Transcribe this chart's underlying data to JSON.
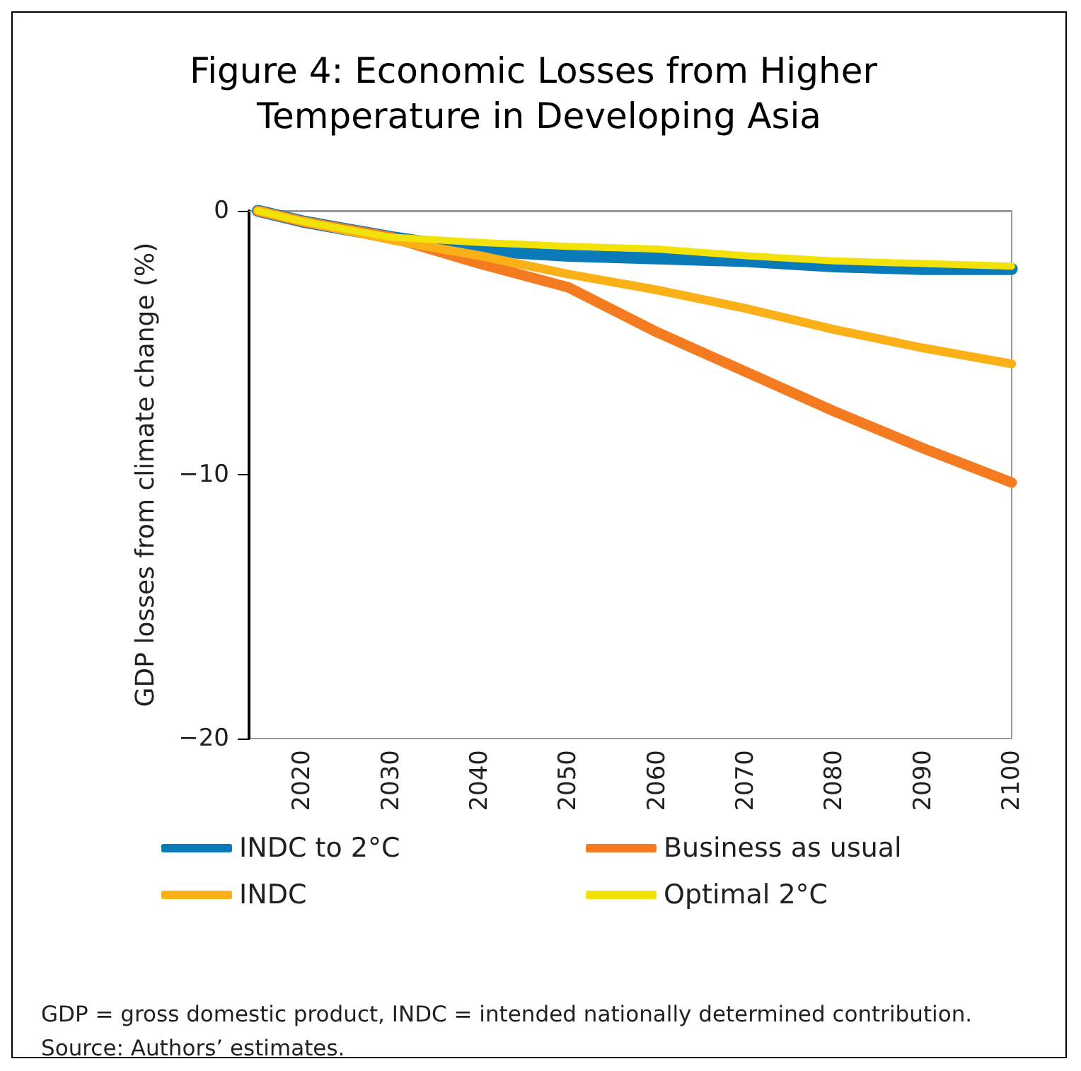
{
  "chart_data": {
    "type": "line",
    "title": "Figure 4: Economic Losses from Higher Temperature in Developing Asia",
    "ylabel": "GDP losses from climate change (%)",
    "x": [
      2015,
      2020,
      2030,
      2040,
      2050,
      2060,
      2070,
      2080,
      2090,
      2100
    ],
    "series": [
      {
        "name": "INDC to 2°C",
        "color": "#0a7ab8",
        "values": [
          0,
          -0.4,
          -1.0,
          -1.5,
          -1.7,
          -1.8,
          -1.9,
          -2.1,
          -2.2,
          -2.2
        ]
      },
      {
        "name": "Business as usual",
        "color": "#f47b20",
        "values": [
          0,
          -0.4,
          -1.0,
          -2.0,
          -2.9,
          -4.6,
          -6.1,
          -7.6,
          -9.0,
          -10.3
        ]
      },
      {
        "name": "INDC",
        "color": "#fbb018",
        "values": [
          0,
          -0.4,
          -1.1,
          -1.7,
          -2.4,
          -3.0,
          -3.7,
          -4.5,
          -5.2,
          -5.8
        ]
      },
      {
        "name": "Optimal 2°C",
        "color": "#f2e20a",
        "values": [
          0,
          -0.4,
          -1.0,
          -1.2,
          -1.35,
          -1.45,
          -1.7,
          -1.9,
          -2.0,
          -2.1
        ]
      }
    ],
    "xlim": [
      2014,
      2100
    ],
    "xticks": [
      2020,
      2030,
      2040,
      2050,
      2060,
      2070,
      2080,
      2090,
      2100
    ],
    "ylim": [
      -20,
      0
    ],
    "yticks": [
      {
        "value": -20,
        "label": "−20"
      },
      {
        "value": -10,
        "label": "−10"
      },
      0
    ],
    "grid": false,
    "legend": "bottom",
    "marker": "none",
    "line_style": "solid",
    "annotations": [
      "GDP = gross domestic product, INDC = intended nationally determined contribution.",
      "Source: Authors’ estimates."
    ]
  }
}
